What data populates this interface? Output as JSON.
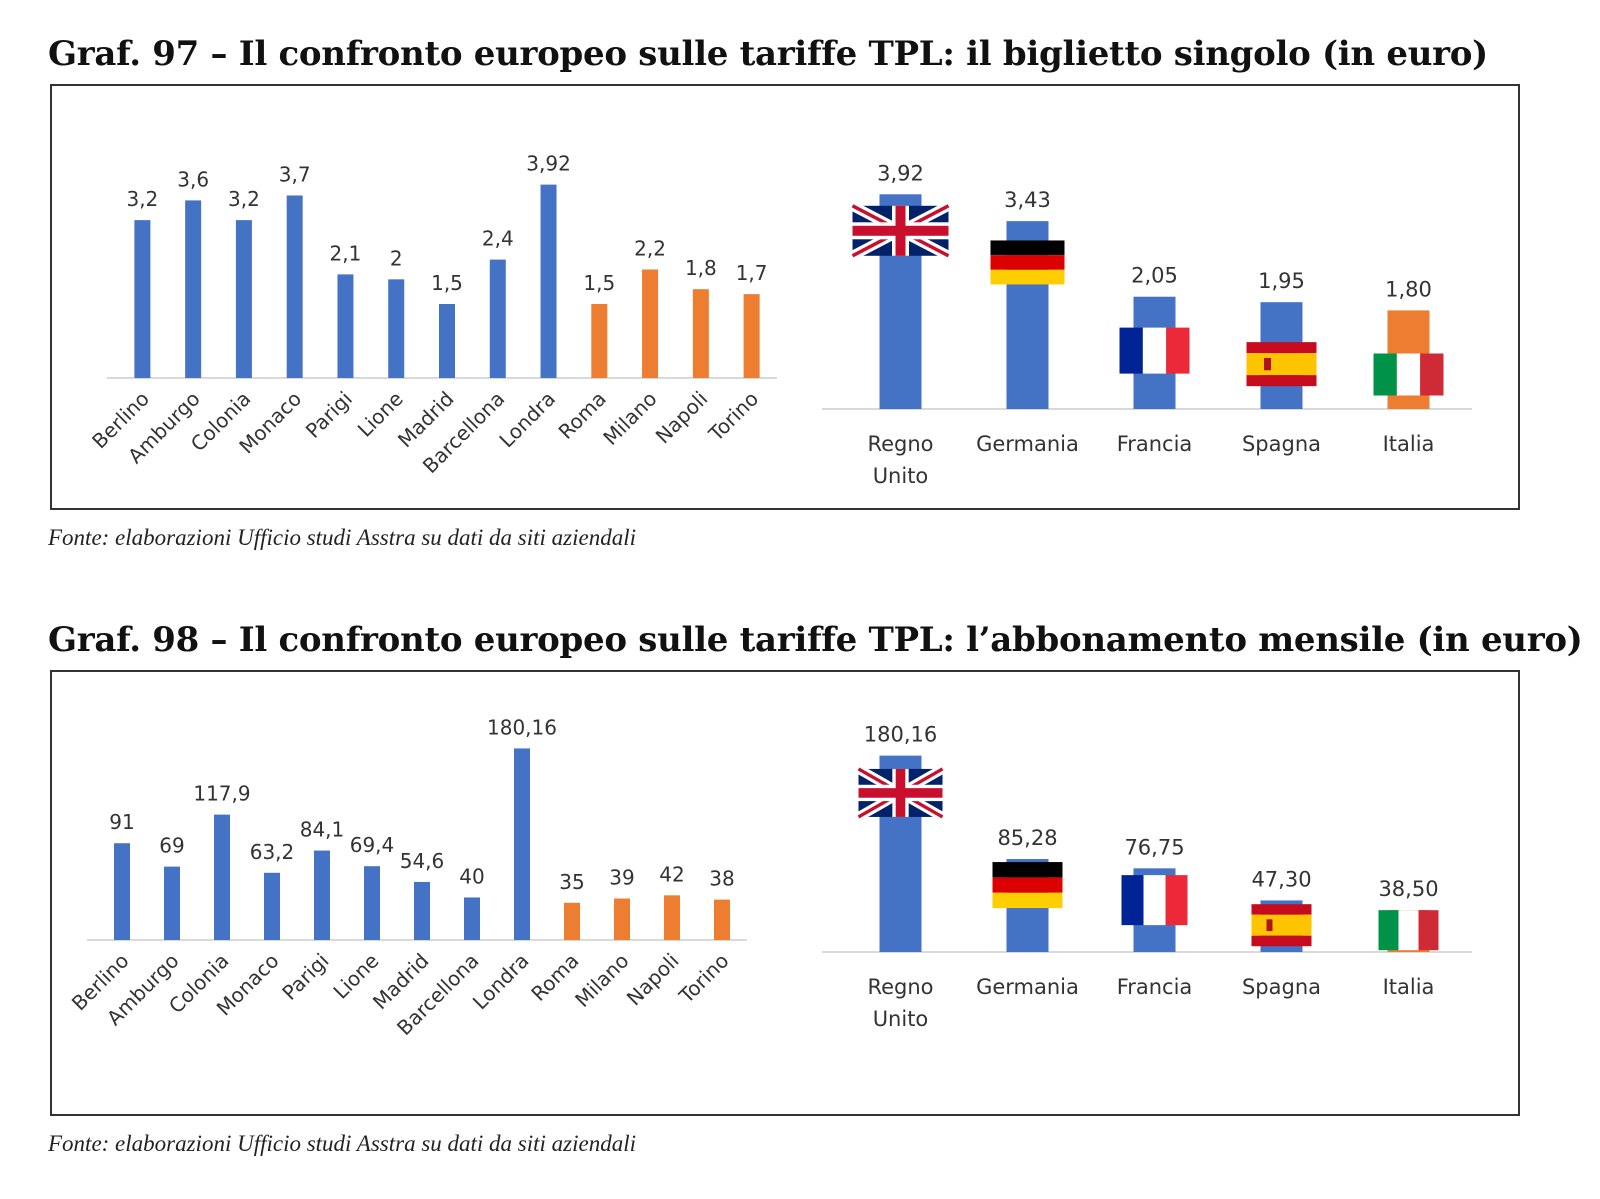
{
  "figures": [
    {
      "title": "Graf. 97 –  Il confronto europeo sulle tariffe TPL: il biglietto singolo (in euro)",
      "source": "Fonte: elaborazioni Ufficio studi Asstra su dati da siti aziendali"
    },
    {
      "title": "Graf. 98 –  Il confronto europeo sulle tariffe TPL: l’abbonamento mensile (in euro)",
      "source": "Fonte: elaborazioni Ufficio studi Asstra su dati da siti aziendali"
    }
  ],
  "colors": {
    "blue": "#4472C4",
    "orange": "#ED7D31",
    "axis": "#D9D9D9"
  },
  "chart_data": [
    {
      "type": "bar",
      "categories": [
        "Berlino",
        "Amburgo",
        "Colonia",
        "Monaco",
        "Parigi",
        "Lione",
        "Madrid",
        "Barcellona",
        "Londra",
        "Roma",
        "Milano",
        "Napoli",
        "Torino"
      ],
      "values": [
        3.2,
        3.6,
        3.2,
        3.7,
        2.1,
        2,
        1.5,
        2.4,
        3.92,
        1.5,
        2.2,
        1.8,
        1.7
      ],
      "data_labels": [
        "3,2",
        "3,6",
        "3,2",
        "3,7",
        "2,1",
        "2",
        "1,5",
        "2,4",
        "3,92",
        "1,5",
        "2,2",
        "1,8",
        "1,7"
      ],
      "bar_colors": [
        "blue",
        "blue",
        "blue",
        "blue",
        "blue",
        "blue",
        "blue",
        "blue",
        "blue",
        "orange",
        "orange",
        "orange",
        "orange"
      ],
      "ylim": [
        0,
        4.5
      ]
    },
    {
      "type": "bar",
      "categories": [
        [
          "Regno",
          "Unito"
        ],
        [
          "Germania"
        ],
        [
          "Francia"
        ],
        [
          "Spagna"
        ],
        [
          "Italia"
        ]
      ],
      "values": [
        3.92,
        3.43,
        2.05,
        1.95,
        1.8
      ],
      "data_labels": [
        "3,92",
        "3,43",
        "2,05",
        "1,95",
        "1,80"
      ],
      "bar_colors": [
        "blue",
        "blue",
        "blue",
        "blue",
        "orange"
      ],
      "flags": [
        "uk-flag-icon",
        "germany-flag-icon",
        "france-flag-icon",
        "spain-flag-icon",
        "italy-flag-icon"
      ],
      "ylim": [
        0,
        4.4
      ]
    },
    {
      "type": "bar",
      "categories": [
        "Berlino",
        "Amburgo",
        "Colonia",
        "Monaco",
        "Parigi",
        "Lione",
        "Madrid",
        "Barcellona",
        "Londra",
        "Roma",
        "Milano",
        "Napoli",
        "Torino"
      ],
      "values": [
        91,
        69,
        117.9,
        63.2,
        84.1,
        69.4,
        54.6,
        40,
        180.16,
        35,
        39,
        42,
        38
      ],
      "data_labels": [
        "91",
        "69",
        "117,9",
        "63,2",
        "84,1",
        "69,4",
        "54,6",
        "40",
        "180,16",
        "35",
        "39",
        "42",
        "38"
      ],
      "bar_colors": [
        "blue",
        "blue",
        "blue",
        "blue",
        "blue",
        "blue",
        "blue",
        "blue",
        "blue",
        "orange",
        "orange",
        "orange",
        "orange"
      ],
      "ylim": [
        0,
        205
      ]
    },
    {
      "type": "bar",
      "categories": [
        [
          "Regno",
          "Unito"
        ],
        [
          "Germania"
        ],
        [
          "Francia"
        ],
        [
          "Spagna"
        ],
        [
          "Italia"
        ]
      ],
      "values": [
        180.16,
        85.28,
        76.75,
        47.3,
        38.5
      ],
      "data_labels": [
        "180,16",
        "85,28",
        "76,75",
        "47,30",
        "38,50"
      ],
      "bar_colors": [
        "blue",
        "blue",
        "blue",
        "blue",
        "orange"
      ],
      "flags": [
        "uk-flag-icon",
        "germany-flag-icon",
        "france-flag-icon",
        "spain-flag-icon",
        "italy-flag-icon"
      ],
      "ylim": [
        0,
        200
      ]
    }
  ]
}
